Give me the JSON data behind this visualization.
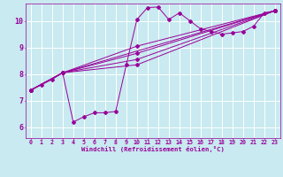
{
  "background_color": "#c8eaf0",
  "line_color": "#990099",
  "grid_color": "#ffffff",
  "text_color": "#990099",
  "xlabel": "Windchill (Refroidissement éolien,°C)",
  "ylabel_ticks": [
    6,
    7,
    8,
    9,
    10
  ],
  "xlim": [
    -0.5,
    23.5
  ],
  "ylim": [
    5.6,
    10.65
  ],
  "xticks": [
    0,
    1,
    2,
    3,
    4,
    5,
    6,
    7,
    8,
    9,
    10,
    11,
    12,
    13,
    14,
    15,
    16,
    17,
    18,
    19,
    20,
    21,
    22,
    23
  ],
  "series1_x": [
    0,
    1,
    2,
    3,
    4,
    5,
    6,
    7,
    8,
    9,
    10,
    11,
    12,
    13,
    14,
    15,
    16,
    17,
    18,
    19,
    20,
    21,
    22,
    23
  ],
  "series1_y": [
    7.4,
    7.6,
    7.8,
    8.05,
    6.2,
    6.4,
    6.55,
    6.55,
    6.6,
    8.35,
    10.05,
    10.5,
    10.52,
    10.05,
    10.3,
    10.0,
    9.7,
    9.6,
    9.5,
    9.55,
    9.6,
    9.8,
    10.3,
    10.38
  ],
  "series2_x": [
    0,
    3,
    23
  ],
  "series2_y": [
    7.4,
    8.05,
    10.38
  ],
  "series3_x": [
    0,
    3,
    10,
    23
  ],
  "series3_y": [
    7.4,
    8.05,
    9.05,
    10.38
  ],
  "series4_x": [
    0,
    3,
    10,
    23
  ],
  "series4_y": [
    7.4,
    8.05,
    8.78,
    10.38
  ],
  "series5_x": [
    0,
    3,
    10,
    23
  ],
  "series5_y": [
    7.4,
    8.05,
    8.55,
    10.38
  ],
  "series6_x": [
    0,
    3,
    10,
    23
  ],
  "series6_y": [
    7.4,
    8.05,
    8.35,
    10.38
  ]
}
